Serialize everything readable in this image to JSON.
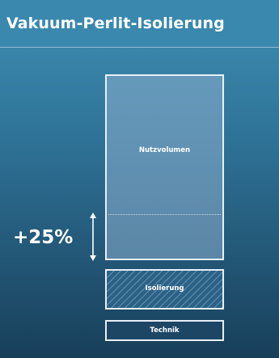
{
  "header": {
    "title": "Vakuum-Perlit-Isolierung"
  },
  "diagram": {
    "increase_label": "+25%",
    "segments": [
      {
        "label": "Nutzvolumen"
      },
      {
        "label": "Isolierung"
      },
      {
        "label": "Technik"
      }
    ]
  },
  "colors": {
    "background_top": "#3f8fb3",
    "background_bottom": "#183f5a",
    "outline": "#e8f0f6",
    "text": "#ffffff"
  }
}
